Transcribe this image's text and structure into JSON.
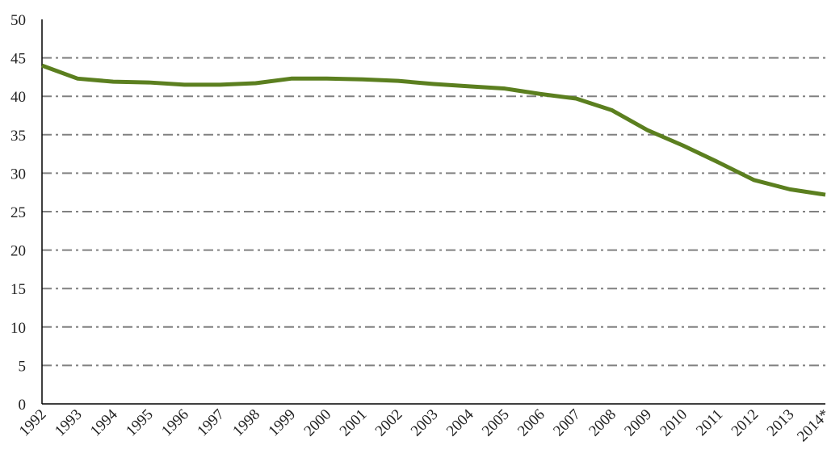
{
  "chart_data": {
    "type": "line",
    "categories": [
      "1992",
      "1993",
      "1994",
      "1995",
      "1996",
      "1997",
      "1998",
      "1999",
      "2000",
      "2001",
      "2002",
      "2003",
      "2004",
      "2005",
      "2006",
      "2007",
      "2008",
      "2009",
      "2010",
      "2011",
      "2012",
      "2013",
      "2014*"
    ],
    "series": [
      {
        "color": "#5b7f1f",
        "values": [
          44.0,
          42.3,
          41.9,
          41.8,
          41.5,
          41.5,
          41.7,
          42.3,
          42.3,
          42.2,
          42.0,
          41.6,
          41.3,
          41.0,
          40.3,
          39.7,
          38.2,
          35.6,
          33.6,
          31.4,
          29.1,
          27.9,
          27.2
        ]
      }
    ],
    "ylim": [
      0,
      50
    ],
    "yticks": [
      0,
      5,
      10,
      15,
      20,
      25,
      30,
      35,
      40,
      45,
      50
    ],
    "grid": true
  }
}
